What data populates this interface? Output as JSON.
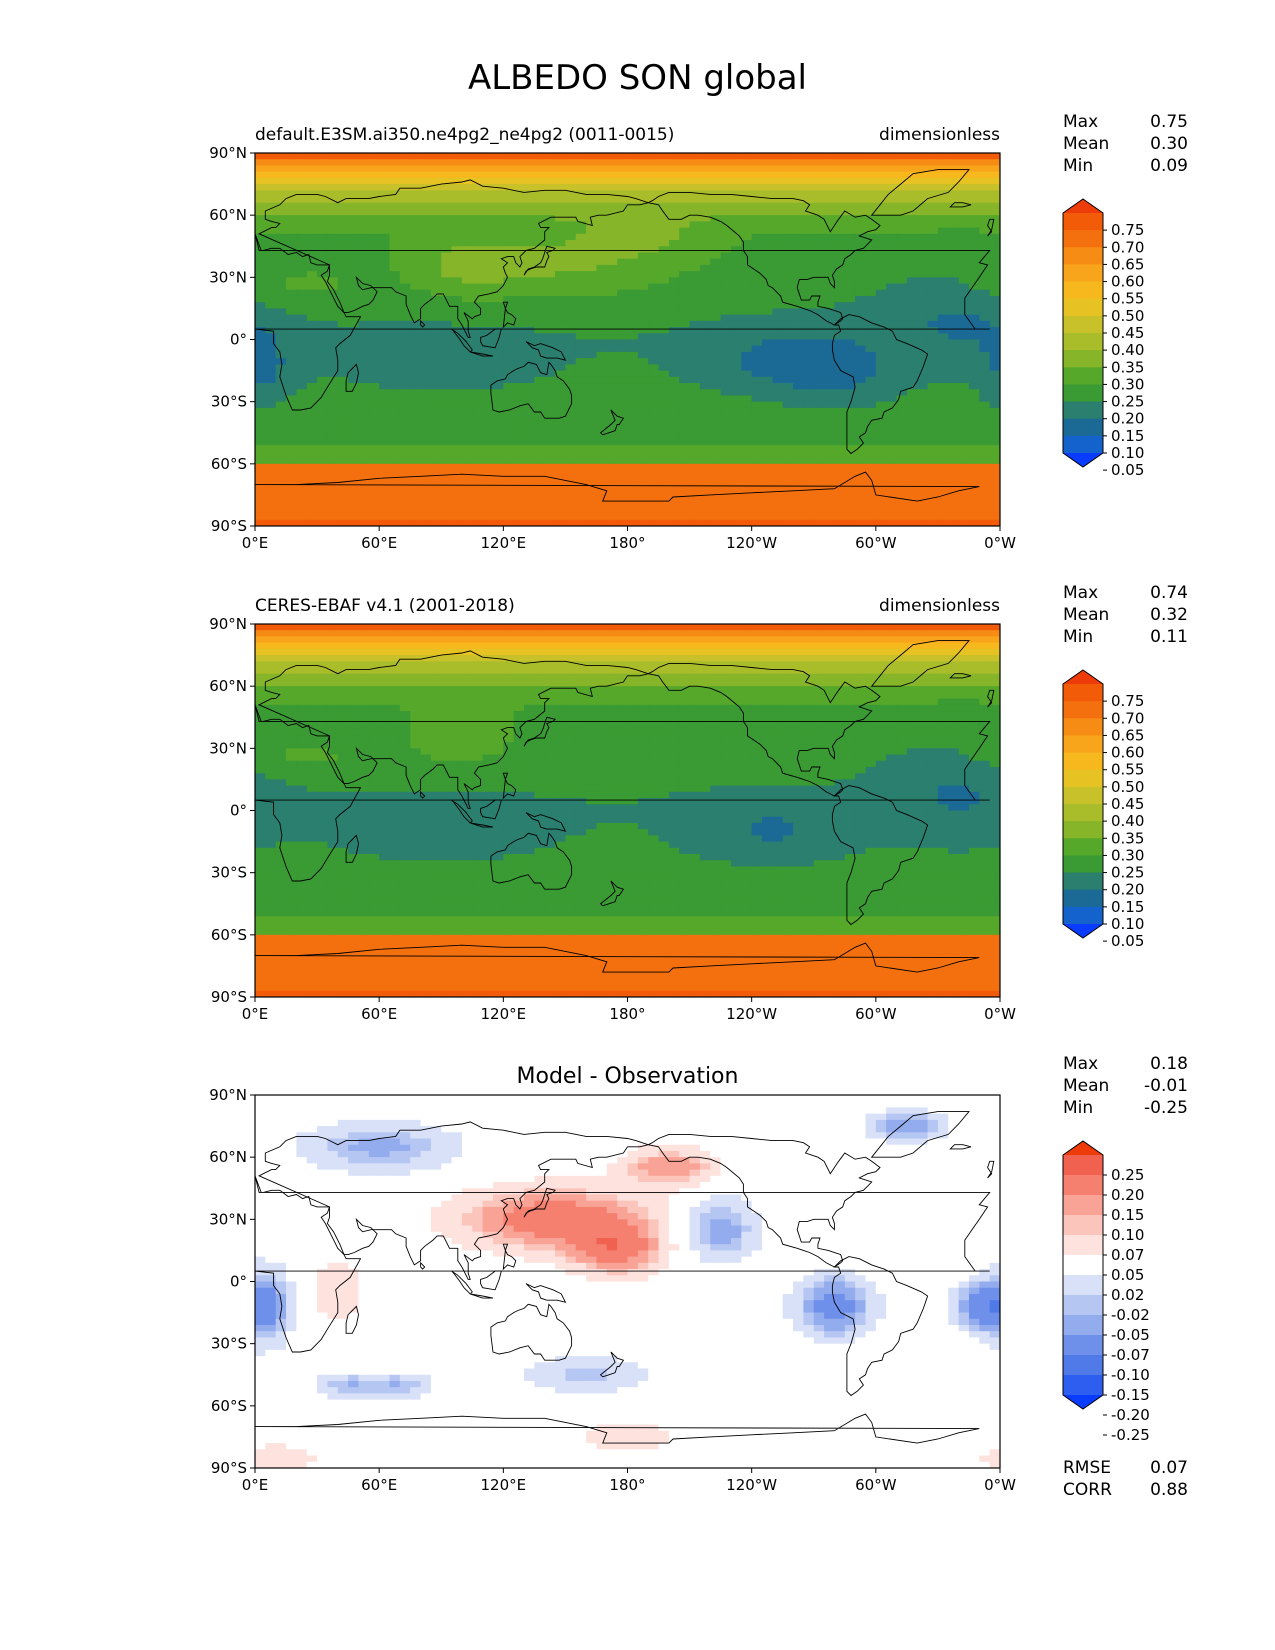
{
  "title": "ALBEDO SON global",
  "axes": {
    "lat_labels": [
      "90°N",
      "60°N",
      "30°N",
      "0°",
      "30°S",
      "60°S",
      "90°S"
    ],
    "lon_labels": [
      "0°E",
      "60°E",
      "120°E",
      "180°",
      "120°W",
      "60°W",
      "0°W"
    ]
  },
  "colors": {
    "main_scale": [
      "#0a3cff",
      "#1462cc",
      "#1b6a95",
      "#2a7f6f",
      "#3a9a33",
      "#55a82a",
      "#86b52a",
      "#a9bd2b",
      "#c8c12a",
      "#e6c322",
      "#f6b81d",
      "#f9a51b",
      "#f78c14",
      "#f4700f",
      "#f25b08",
      "#ee3b0a"
    ],
    "diff_scale": [
      "#0a3cff",
      "#2e5ef0",
      "#4f7ae8",
      "#6f90ea",
      "#93acee",
      "#b6c6f2",
      "#d9e1f8",
      "#ffffff",
      "#fde2de",
      "#fbc5bc",
      "#f9a396",
      "#f5806f",
      "#f1614f",
      "#ee3b0a"
    ],
    "coastline": "#000000"
  },
  "panels": [
    {
      "id": "test",
      "left_title": "default.E3SM.ai350.ne4pg2_ne4pg2 (0011-0015)",
      "right_title": "dimensionless",
      "center_title": "",
      "stats": [
        {
          "label": "Max",
          "value": "0.75"
        },
        {
          "label": "Mean",
          "value": "0.30"
        },
        {
          "label": "Min",
          "value": "0.09"
        }
      ],
      "colorbar_ticks": [
        "0.75",
        "0.70",
        "0.65",
        "0.60",
        "0.55",
        "0.50",
        "0.45",
        "0.40",
        "0.35",
        "0.30",
        "0.25",
        "0.20",
        "0.15",
        "0.10",
        "0.05"
      ],
      "footer_stats": []
    },
    {
      "id": "reference",
      "left_title": "CERES-EBAF v4.1 (2001-2018)",
      "right_title": "dimensionless",
      "center_title": "",
      "stats": [
        {
          "label": "Max",
          "value": "0.74"
        },
        {
          "label": "Mean",
          "value": "0.32"
        },
        {
          "label": "Min",
          "value": "0.11"
        }
      ],
      "colorbar_ticks": [
        "0.75",
        "0.70",
        "0.65",
        "0.60",
        "0.55",
        "0.50",
        "0.45",
        "0.40",
        "0.35",
        "0.30",
        "0.25",
        "0.20",
        "0.15",
        "0.10",
        "0.05"
      ],
      "footer_stats": []
    },
    {
      "id": "difference",
      "left_title": "",
      "right_title": "",
      "center_title": "Model - Observation",
      "stats": [
        {
          "label": "Max",
          "value": "0.18"
        },
        {
          "label": "Mean",
          "value": "-0.01"
        },
        {
          "label": "Min",
          "value": "-0.25"
        }
      ],
      "colorbar_ticks": [
        "0.25",
        "0.20",
        "0.15",
        "0.10",
        "0.07",
        "0.05",
        "0.02",
        "-0.02",
        "-0.05",
        "-0.07",
        "-0.10",
        "-0.15",
        "-0.20",
        "-0.25"
      ],
      "footer_stats": [
        {
          "label": "RMSE",
          "value": "0.07"
        },
        {
          "label": "CORR",
          "value": "0.88"
        }
      ]
    }
  ]
}
